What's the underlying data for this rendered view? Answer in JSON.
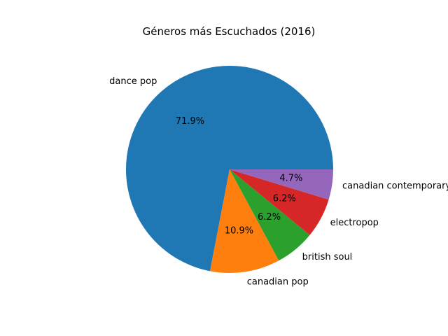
{
  "chart_data": {
    "type": "pie",
    "title": "Géneros más Escuchados (2016)",
    "slices": [
      {
        "label": "dance pop",
        "percent": 71.9,
        "percent_label": "71.9%",
        "color": "#1f77b4"
      },
      {
        "label": "canadian pop",
        "percent": 10.9,
        "percent_label": "10.9%",
        "color": "#ff7f0e"
      },
      {
        "label": "british soul",
        "percent": 6.2,
        "percent_label": "6.2%",
        "color": "#2ca02c"
      },
      {
        "label": "electropop",
        "percent": 6.2,
        "percent_label": "6.2%",
        "color": "#d62728"
      },
      {
        "label": "canadian contemporary r&b",
        "percent": 4.7,
        "percent_label": "4.7%",
        "color": "#9467bd"
      }
    ],
    "start_angle_deg": 0,
    "direction": "counterclockwise",
    "legend": false
  }
}
